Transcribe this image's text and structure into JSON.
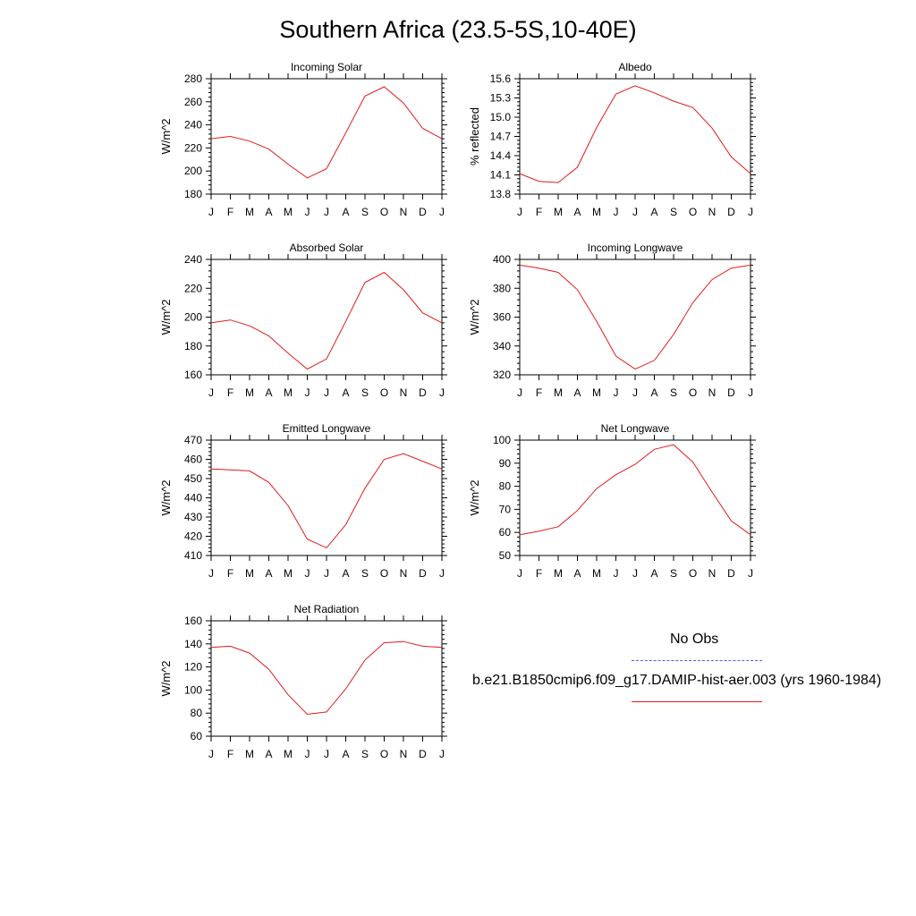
{
  "title": "Southern Africa (23.5-5S,10-40E)",
  "colors": {
    "model": "#e31a1c",
    "obs": "#4a5fe0",
    "axis": "#000000"
  },
  "legend": {
    "obs_label": "No Obs",
    "model_label": "b.e21.B1850cmip6.f09_g17.DAMIP-hist-aer.003 (yrs 1960-1984)"
  },
  "chart_data": [
    {
      "type": "line",
      "title": "Incoming Solar",
      "ylabel": "W/m^2",
      "categories": [
        "J",
        "F",
        "M",
        "A",
        "M",
        "J",
        "J",
        "A",
        "S",
        "O",
        "N",
        "D",
        "J"
      ],
      "ylim": [
        180,
        280
      ],
      "yticks": [
        180,
        200,
        220,
        240,
        260,
        280
      ],
      "series": [
        {
          "values": [
            228,
            230,
            226,
            219,
            206,
            194,
            202,
            233,
            265,
            273,
            259,
            237,
            228
          ]
        }
      ]
    },
    {
      "type": "line",
      "title": "Albedo",
      "ylabel": "% reflected",
      "categories": [
        "J",
        "F",
        "M",
        "A",
        "M",
        "J",
        "J",
        "A",
        "S",
        "O",
        "N",
        "D",
        "J"
      ],
      "ylim": [
        13.8,
        15.6
      ],
      "yticks": [
        13.8,
        14.1,
        14.4,
        14.7,
        15.0,
        15.3,
        15.6
      ],
      "series": [
        {
          "values": [
            14.12,
            14.0,
            13.98,
            14.22,
            14.84,
            15.36,
            15.49,
            15.38,
            15.25,
            15.15,
            14.83,
            14.38,
            14.12
          ]
        }
      ]
    },
    {
      "type": "line",
      "title": "Absorbed Solar",
      "ylabel": "W/m^2",
      "categories": [
        "J",
        "F",
        "M",
        "A",
        "M",
        "J",
        "J",
        "A",
        "S",
        "O",
        "N",
        "D",
        "J"
      ],
      "ylim": [
        160,
        240
      ],
      "yticks": [
        160,
        180,
        200,
        220,
        240
      ],
      "series": [
        {
          "values": [
            196,
            198,
            194,
            187,
            175,
            164,
            171,
            197,
            224,
            231,
            219,
            203,
            196
          ]
        }
      ]
    },
    {
      "type": "line",
      "title": "Incoming Longwave",
      "ylabel": "W/m^2",
      "categories": [
        "J",
        "F",
        "M",
        "A",
        "M",
        "J",
        "J",
        "A",
        "S",
        "O",
        "N",
        "D",
        "J"
      ],
      "ylim": [
        320,
        400
      ],
      "yticks": [
        320,
        340,
        360,
        380,
        400
      ],
      "series": [
        {
          "values": [
            396,
            394,
            391,
            379,
            357,
            333,
            324,
            330,
            348,
            370,
            386,
            394,
            396
          ]
        }
      ]
    },
    {
      "type": "line",
      "title": "Emitted Longwave",
      "ylabel": "W/m^2",
      "categories": [
        "J",
        "F",
        "M",
        "A",
        "M",
        "J",
        "J",
        "A",
        "S",
        "O",
        "N",
        "D",
        "J"
      ],
      "ylim": [
        410,
        470
      ],
      "yticks": [
        410,
        420,
        430,
        440,
        450,
        460,
        470
      ],
      "series": [
        {
          "values": [
            455,
            454.5,
            454,
            448,
            436,
            418.5,
            414,
            426,
            445,
            460,
            463,
            459,
            455
          ]
        }
      ]
    },
    {
      "type": "line",
      "title": "Net Longwave",
      "ylabel": "W/m^2",
      "categories": [
        "J",
        "F",
        "M",
        "A",
        "M",
        "J",
        "J",
        "A",
        "S",
        "O",
        "N",
        "D",
        "J"
      ],
      "ylim": [
        50,
        100
      ],
      "yticks": [
        50,
        60,
        70,
        80,
        90,
        100
      ],
      "series": [
        {
          "values": [
            59,
            60.5,
            62.5,
            69.5,
            79,
            85,
            89.5,
            96,
            98,
            90.5,
            77.5,
            65,
            59
          ]
        }
      ]
    },
    {
      "type": "line",
      "title": "Net Radiation",
      "ylabel": "W/m^2",
      "categories": [
        "J",
        "F",
        "M",
        "A",
        "M",
        "J",
        "J",
        "A",
        "S",
        "O",
        "N",
        "D",
        "J"
      ],
      "ylim": [
        60,
        160
      ],
      "yticks": [
        60,
        80,
        100,
        120,
        140,
        160
      ],
      "series": [
        {
          "values": [
            137,
            138,
            132,
            118,
            96,
            79,
            81,
            101,
            126,
            141,
            142,
            138,
            137
          ]
        }
      ]
    }
  ]
}
